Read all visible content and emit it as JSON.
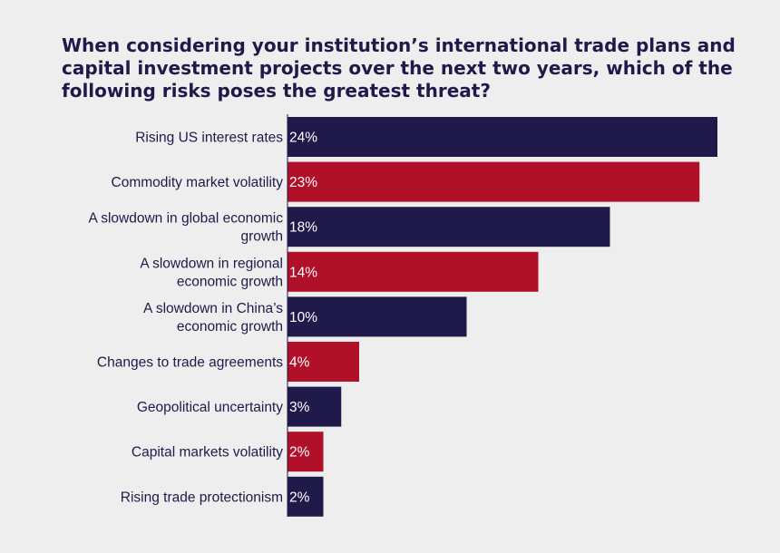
{
  "chart_data": {
    "type": "bar",
    "orientation": "horizontal",
    "title": "When considering your institution’s international trade plans and capital investment projects over the next two years, which of the following risks poses the greatest threat?",
    "categories": [
      [
        "Rising US interest rates"
      ],
      [
        "Commodity market volatility"
      ],
      [
        "A slowdown in global economic",
        "growth"
      ],
      [
        "A slowdown in regional",
        "economic growth"
      ],
      [
        "A slowdown in China’s",
        "economic growth"
      ],
      [
        "Changes to trade agreements"
      ],
      [
        "Geopolitical uncertainty"
      ],
      [
        "Capital markets volatility"
      ],
      [
        "Rising trade protectionism"
      ]
    ],
    "values": [
      24,
      23,
      18,
      14,
      10,
      4,
      3,
      2,
      2
    ],
    "value_labels": [
      "24%",
      "23%",
      "18%",
      "14%",
      "10%",
      "4%",
      "3%",
      "2%",
      "2%"
    ],
    "value_unit": "%",
    "xlim": [
      0,
      24
    ],
    "grid": false,
    "legend": "none",
    "colors": [
      "#1f1a4a",
      "#b01028",
      "#1f1a4a",
      "#b01028",
      "#1f1a4a",
      "#b01028",
      "#1f1a4a",
      "#b01028",
      "#1f1a4a"
    ],
    "axis_color": "#1f1a4a"
  }
}
